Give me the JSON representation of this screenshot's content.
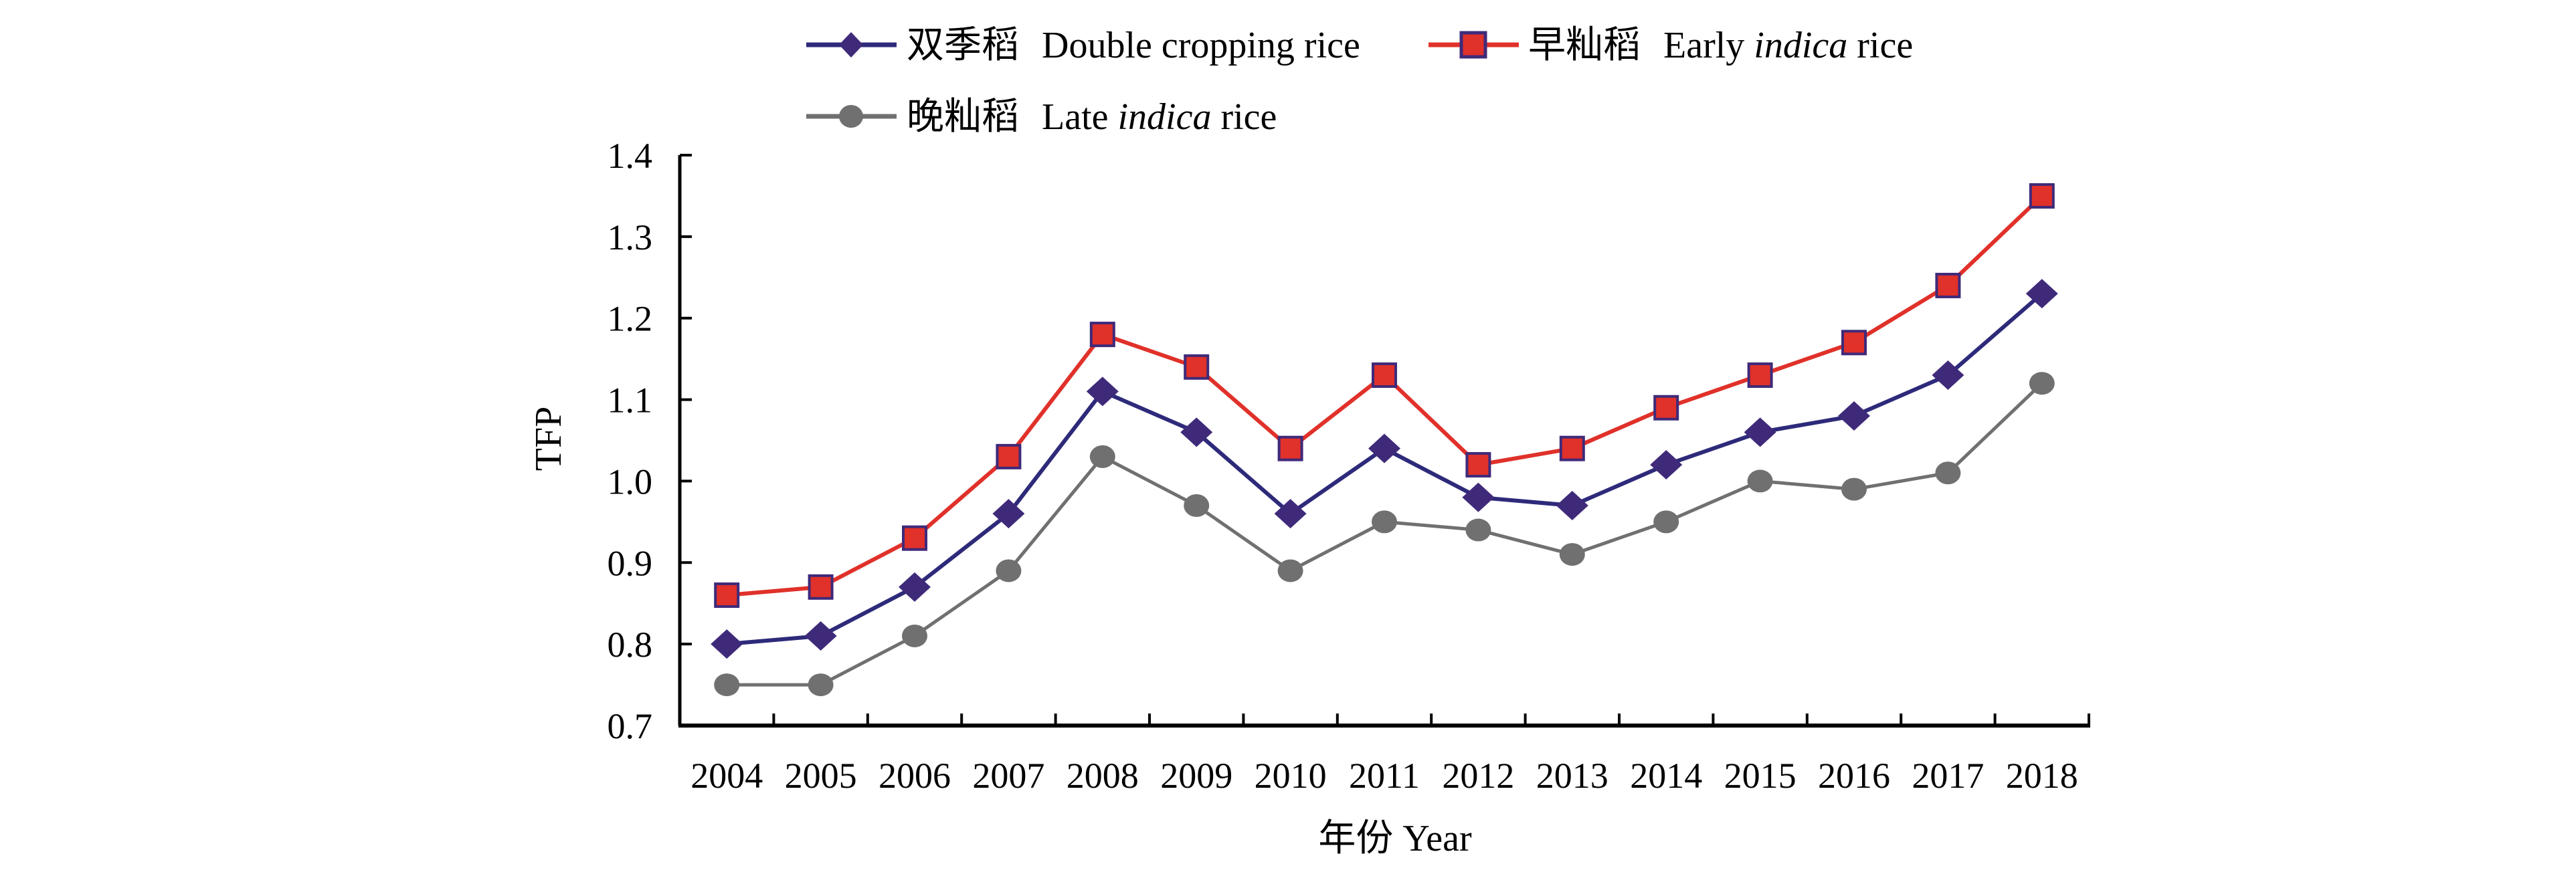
{
  "chart_data": {
    "type": "line",
    "title": "",
    "xlabel": "年份 Year",
    "ylabel": "TFP",
    "categories": [
      "2004",
      "2005",
      "2006",
      "2007",
      "2008",
      "2009",
      "2010",
      "2011",
      "2012",
      "2013",
      "2014",
      "2015",
      "2016",
      "2017",
      "2018"
    ],
    "ylim": [
      0.7,
      1.4
    ],
    "yticks": [
      "0.7",
      "0.8",
      "0.9",
      "1.0",
      "1.1",
      "1.2",
      "1.3",
      "1.4"
    ],
    "grid": false,
    "legend_position": "top",
    "series": [
      {
        "name": "双季稻 Double cropping rice",
        "name_cn": "双季稻",
        "name_en": "Double cropping rice",
        "marker": "diamond",
        "line_color": "#2e2a7a",
        "marker_fill": "#3f2a7a",
        "marker_stroke": "#3f2a7a",
        "values": [
          0.8,
          0.81,
          0.87,
          0.96,
          1.11,
          1.06,
          0.96,
          1.04,
          0.98,
          0.97,
          1.02,
          1.06,
          1.08,
          1.13,
          1.23
        ]
      },
      {
        "name": "早籼稻 Early indica rice",
        "name_cn": "早籼稻",
        "name_en_pre": "Early ",
        "name_en_italic": "indica",
        "name_en_post": " rice",
        "marker": "square",
        "line_color": "#e0312a",
        "marker_fill": "#e0312a",
        "marker_stroke": "#3f2a7a",
        "values": [
          0.86,
          0.87,
          0.93,
          1.03,
          1.18,
          1.14,
          1.04,
          1.13,
          1.02,
          1.04,
          1.09,
          1.13,
          1.17,
          1.24,
          1.35
        ]
      },
      {
        "name": "晚籼稻 Late indica rice",
        "name_cn": "晚籼稻",
        "name_en_pre": "Late ",
        "name_en_italic": "indica",
        "name_en_post": " rice",
        "marker": "circle",
        "line_color": "#707070",
        "marker_fill": "#707070",
        "marker_stroke": "#707070",
        "values": [
          0.75,
          0.75,
          0.81,
          0.89,
          1.03,
          0.97,
          0.89,
          0.95,
          0.94,
          0.91,
          0.95,
          1.0,
          0.99,
          1.01,
          1.12
        ]
      }
    ]
  }
}
